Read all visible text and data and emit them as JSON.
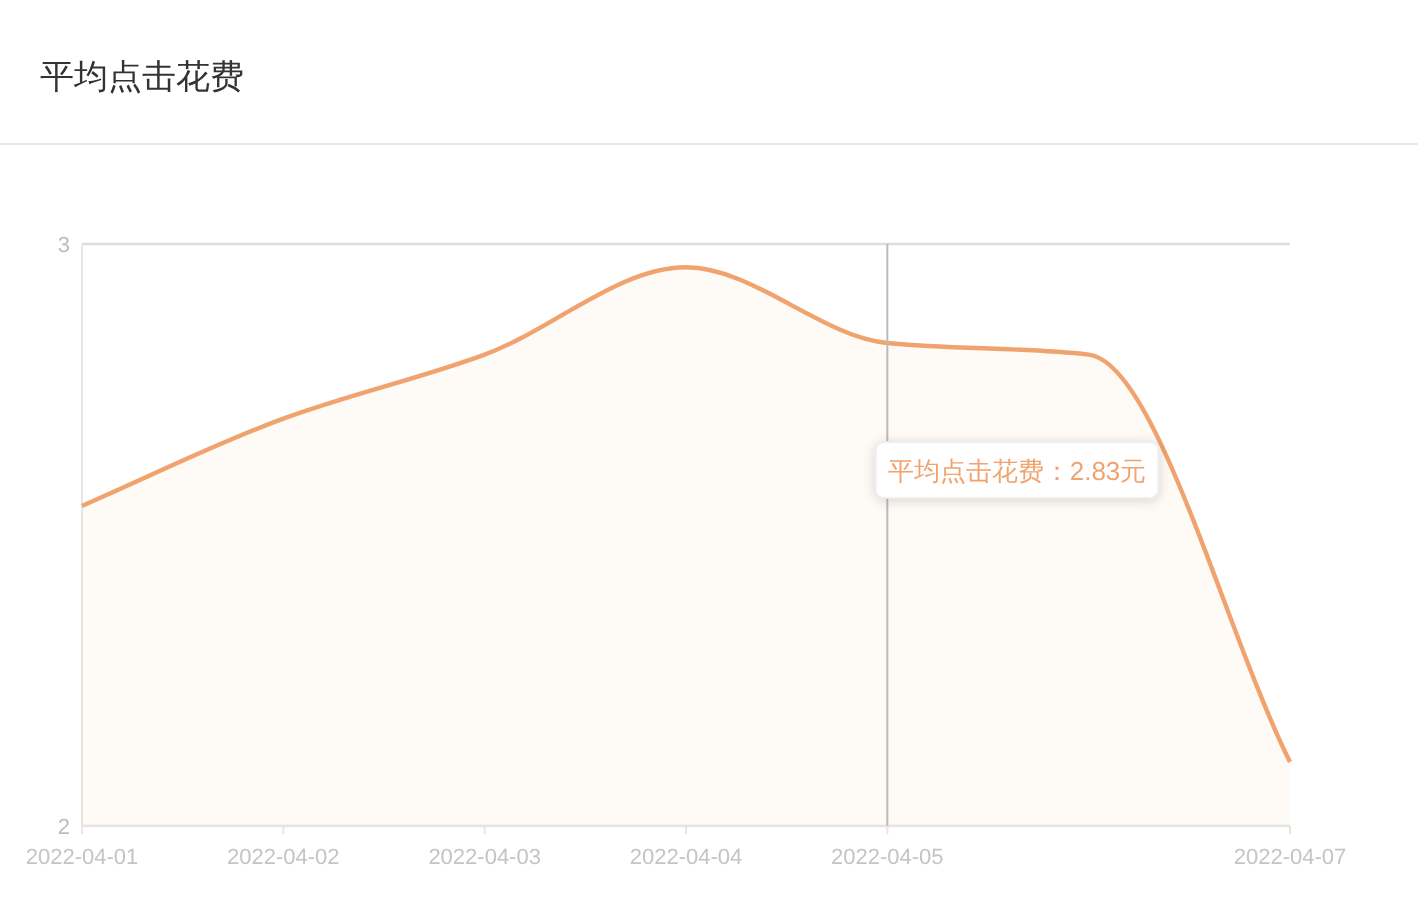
{
  "chart_data": {
    "type": "area",
    "title": "平均点击花费",
    "x": [
      "2022-04-01",
      "2022-04-02",
      "2022-04-03",
      "2022-04-04",
      "2022-04-05",
      "2022-04-06",
      "2022-04-07"
    ],
    "series": [
      {
        "color": "#f0a36e",
        "values": [
          2.55,
          2.7,
          2.81,
          2.96,
          2.83,
          2.81,
          2.11
        ]
      }
    ],
    "xlim": [
      "2022-04-01",
      "2022-04-07"
    ],
    "xticks": [
      {
        "value": "2022-04-01",
        "label": "2022-04-01"
      },
      {
        "value": "2022-04-02",
        "label": "2022-04-02"
      },
      {
        "value": "2022-04-03",
        "label": "2022-04-03"
      },
      {
        "value": "2022-04-04",
        "label": "2022-04-04"
      },
      {
        "value": "2022-04-05",
        "label": "2022-04-05"
      },
      {
        "value": "2022-04-07",
        "label": "2022-04-07"
      }
    ],
    "ylim": [
      2,
      3
    ],
    "yticks": [
      2,
      3
    ],
    "grid": "y",
    "marker": "none",
    "ref_lines": [
      {
        "axis": "x",
        "value": "2022-04-05",
        "color": "#bbbbbb"
      }
    ],
    "annotations": [
      "平均点击花费：2.83元"
    ]
  }
}
